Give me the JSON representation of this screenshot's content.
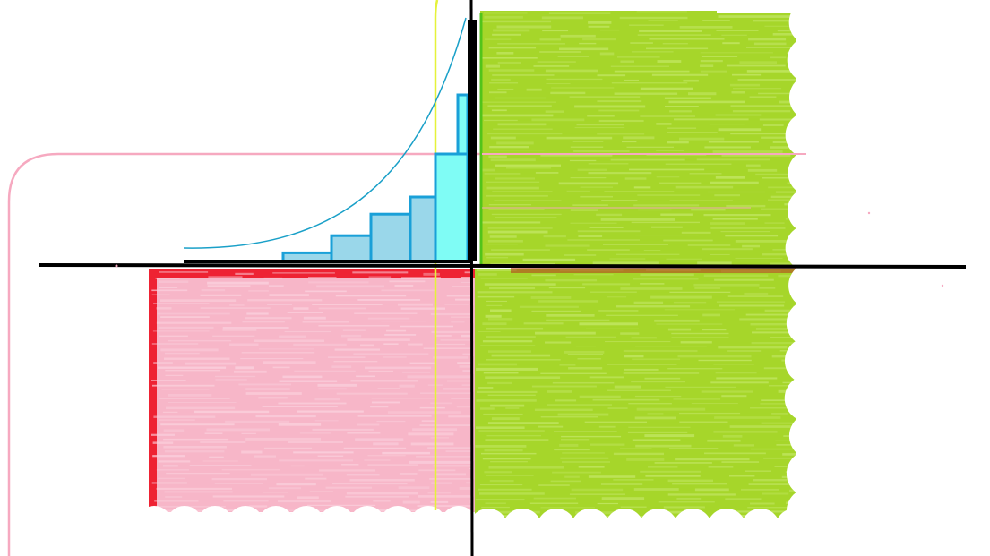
{
  "diagram": {
    "colors": {
      "background": "#ffffff",
      "axis": "#000000",
      "pink_fill": "#f7b6c8",
      "pink_texture": "#fbd3df",
      "red_border": "#ee2233",
      "green_fill": "#a6d62a",
      "green_texture": "#c5e86a",
      "green_edge": "#52c41a",
      "dark_stripe": "#b6371e",
      "pink_outline": "#f6a9c0",
      "yellow_line": "#e5f23a",
      "blue_curve": "#1aa0c8",
      "histogram_fill": "#9ad7ea",
      "histogram_stroke": "#1aa0d8",
      "histogram_bar": "#7ffcf5"
    },
    "histogram": {
      "step_levels": [
        0.08,
        0.24,
        0.44,
        0.6,
        0.92
      ],
      "tall_bar": 1.0,
      "peak_bar": 1.55
    },
    "regions": [
      {
        "name": "bottom-left",
        "color": "pink"
      },
      {
        "name": "top-right",
        "color": "green"
      },
      {
        "name": "bottom-right",
        "color": "green"
      }
    ]
  }
}
